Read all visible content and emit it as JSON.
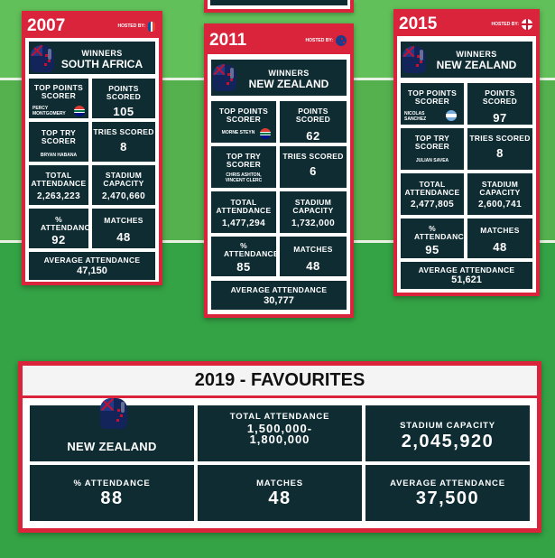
{
  "cards": [
    {
      "year": "2007",
      "hosted_by": "HOSTED BY:",
      "winners_label": "WINNERS",
      "winner": "SOUTH AFRICA",
      "top_points_label": "TOP POINTS SCORER",
      "top_points_player": "PERCY MONTGOMERY",
      "points_scored_label": "POINTS SCORED",
      "points_scored": "105",
      "top_try_label": "TOP TRY SCORER",
      "top_try_player": "BRYAN HABANA",
      "tries_scored_label": "TRIES SCORED",
      "tries_scored": "8",
      "total_attendance_label": "TOTAL ATTENDANCE",
      "total_attendance": "2,263,223",
      "stadium_capacity_label": "STADIUM CAPACITY",
      "stadium_capacity": "2,470,660",
      "pct_attendance_label": "% ATTENDANCE",
      "pct_attendance": "92",
      "matches_label": "MATCHES",
      "matches": "48",
      "avg_attendance_label": "AVERAGE ATTENDANCE",
      "avg_attendance": "47,150"
    },
    {
      "year": "2011",
      "hosted_by": "HOSTED BY:",
      "winners_label": "WINNERS",
      "winner": "NEW ZEALAND",
      "top_points_label": "TOP POINTS SCORER",
      "top_points_player": "MORNE STEYN",
      "points_scored_label": "POINTS SCORED",
      "points_scored": "62",
      "top_try_label": "TOP TRY SCORER",
      "top_try_player": "CHRIS ASHTON, VINCENT CLERC",
      "tries_scored_label": "TRIES SCORED",
      "tries_scored": "6",
      "total_attendance_label": "TOTAL ATTENDANCE",
      "total_attendance": "1,477,294",
      "stadium_capacity_label": "STADIUM CAPACITY",
      "stadium_capacity": "1,732,000",
      "pct_attendance_label": "% ATTENDANCE",
      "pct_attendance": "85",
      "matches_label": "MATCHES",
      "matches": "48",
      "avg_attendance_label": "AVERAGE ATTENDANCE",
      "avg_attendance": "30,777"
    },
    {
      "year": "2015",
      "hosted_by": "HOSTED BY:",
      "winners_label": "WINNERS",
      "winner": "NEW ZEALAND",
      "top_points_label": "TOP POINTS SCORER",
      "top_points_player": "NICOLAS SANCHEZ",
      "points_scored_label": "POINTS SCORED",
      "points_scored": "97",
      "top_try_label": "TOP TRY SCORER",
      "top_try_player": "JULIAN SAVEA",
      "tries_scored_label": "TRIES SCORED",
      "tries_scored": "8",
      "total_attendance_label": "TOTAL ATTENDANCE",
      "total_attendance": "2,477,805",
      "stadium_capacity_label": "STADIUM CAPACITY",
      "stadium_capacity": "2,600,741",
      "pct_attendance_label": "% ATTENDANCE",
      "pct_attendance": "95",
      "matches_label": "MATCHES",
      "matches": "48",
      "avg_attendance_label": "AVERAGE ATTENDANCE",
      "avg_attendance": "51,621"
    }
  ],
  "favourites": {
    "title": "2019 - FAVOURITES",
    "team": "NEW ZEALAND",
    "total_attendance_label": "TOTAL ATTENDANCE",
    "total_attendance": "1,500,000-\n1,800,000",
    "stadium_capacity_label": "STADIUM CAPACITY",
    "stadium_capacity": "2,045,920",
    "pct_attendance_label": "% ATTENDANCE",
    "pct_attendance": "88",
    "matches_label": "MATCHES",
    "matches": "48",
    "avg_attendance_label": "AVERAGE ATTENDANCE",
    "avg_attendance": "37,500"
  },
  "colors": {
    "frame": "#d9243c",
    "tile": "#0f2c33",
    "pitch": "#34a345"
  },
  "icons": {
    "host_2007": "france-flag-icon",
    "host_2011": "new-zealand-flag-icon",
    "host_2015": "england-flag-icon",
    "winner_helmet": "new-zealand-helmet-icon"
  }
}
